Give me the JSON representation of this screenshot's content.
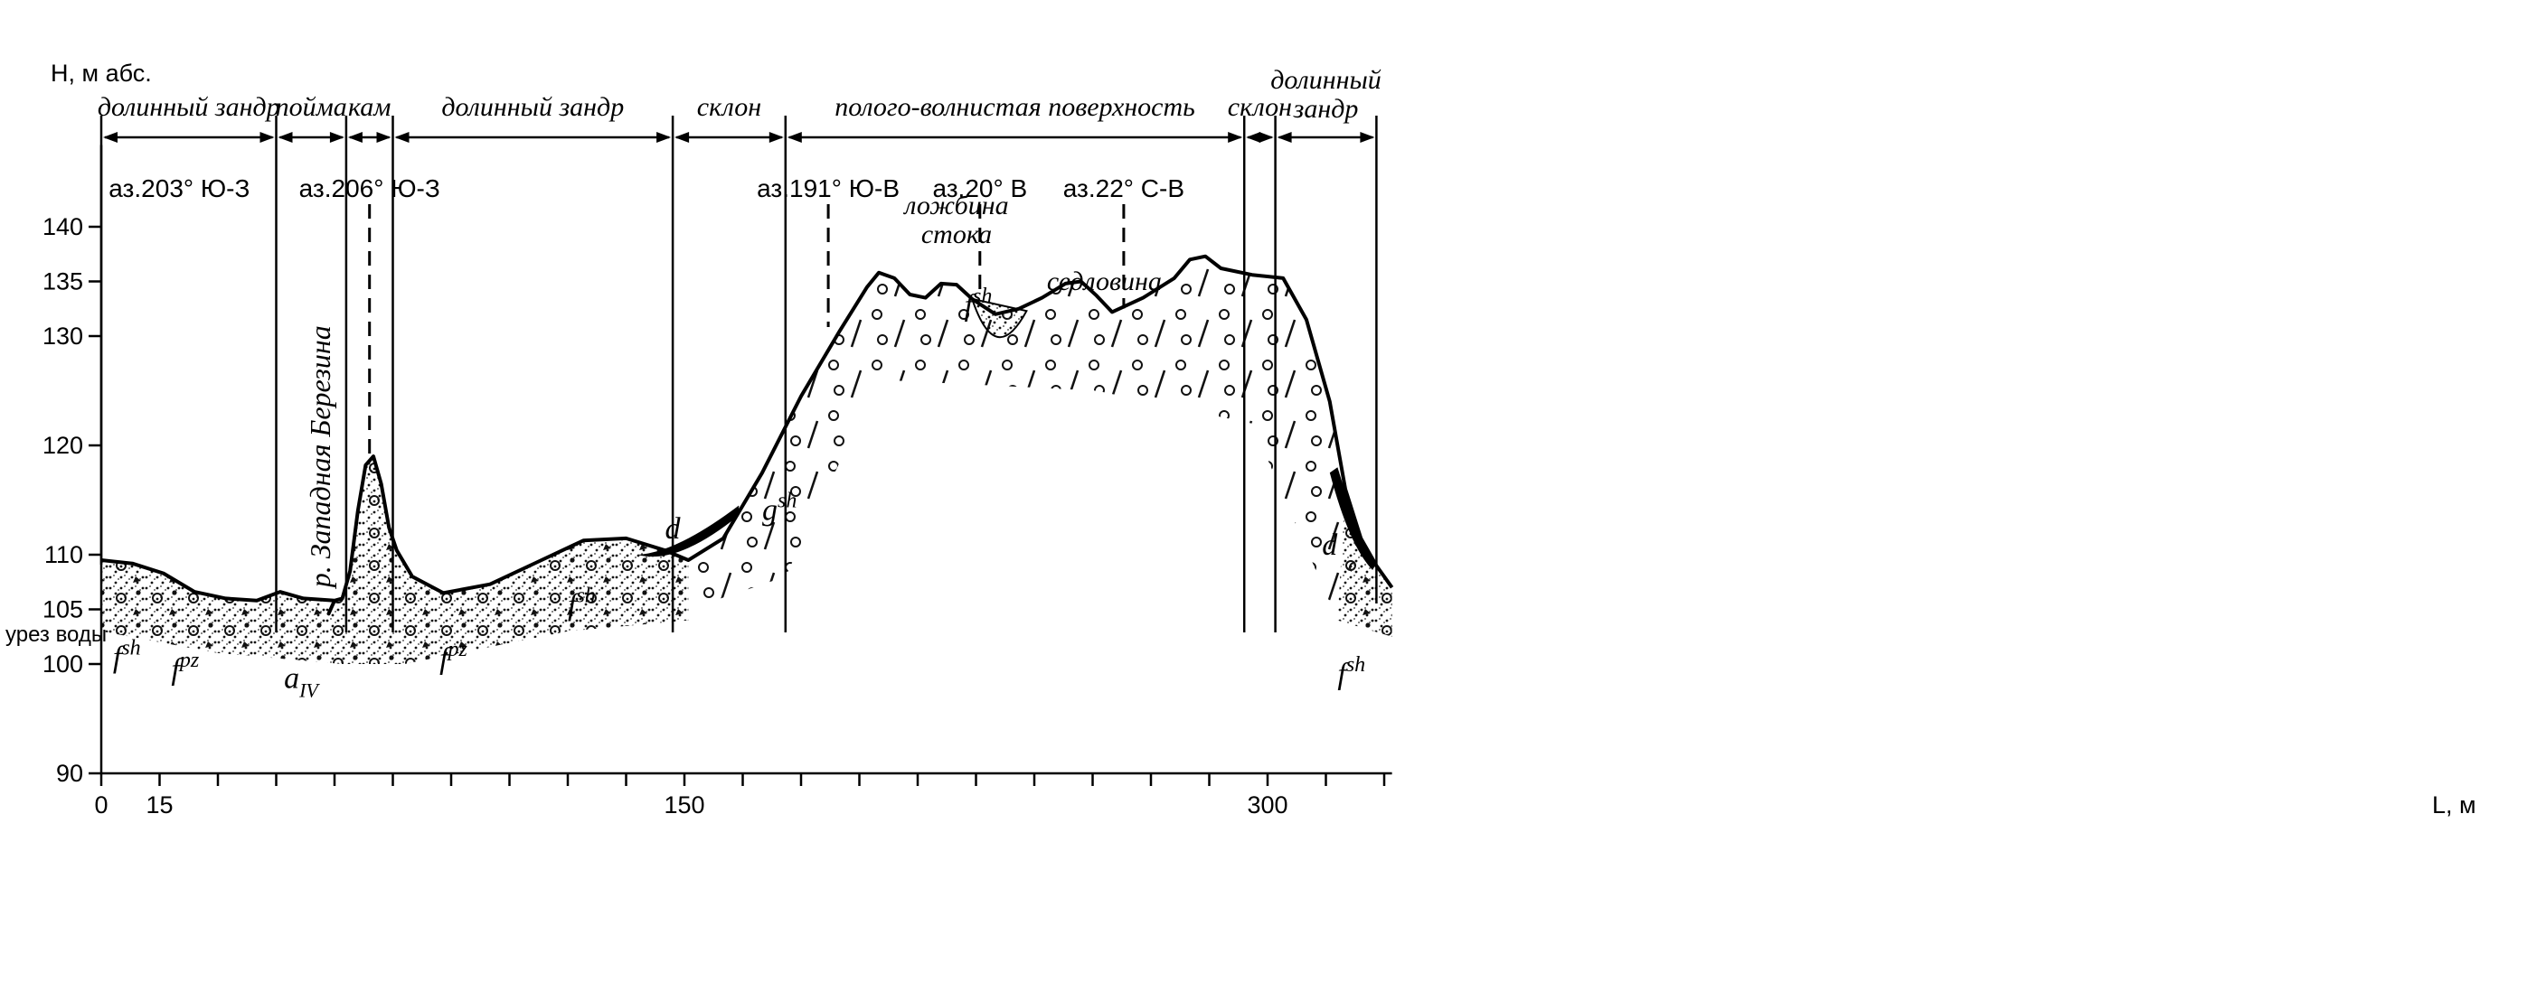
{
  "chart_data": {
    "type": "line",
    "ylabel": "H, м абс.",
    "xlabel": "L, м",
    "ylim": [
      90,
      145
    ],
    "xlim": [
      0,
      332
    ],
    "y_ticks": [
      90,
      100,
      105,
      110,
      120,
      130,
      135,
      140
    ],
    "x_ticks_labeled": [
      0,
      15,
      150,
      300
    ],
    "water_level_label": "урез воды",
    "profile": [
      [
        0,
        109.5
      ],
      [
        8,
        109.2
      ],
      [
        16,
        108.3
      ],
      [
        24,
        106.6
      ],
      [
        32,
        106.0
      ],
      [
        40,
        105.8
      ],
      [
        46,
        106.6
      ],
      [
        52,
        106.0
      ],
      [
        60,
        105.8
      ],
      [
        58.5,
        104.6
      ],
      [
        60,
        105.8
      ],
      [
        62,
        106.0
      ],
      [
        64,
        108.5
      ],
      [
        66,
        114.0
      ],
      [
        68,
        118.2
      ],
      [
        70,
        119.0
      ],
      [
        72,
        116.5
      ],
      [
        74,
        112.5
      ],
      [
        76,
        110.4
      ],
      [
        80,
        108.0
      ],
      [
        88,
        106.5
      ],
      [
        100,
        107.3
      ],
      [
        112,
        109.3
      ],
      [
        124,
        111.3
      ],
      [
        135,
        111.5
      ],
      [
        145,
        110.4
      ],
      [
        151,
        109.5
      ],
      [
        160,
        111.5
      ],
      [
        170,
        117.5
      ],
      [
        180,
        124.5
      ],
      [
        190,
        130.5
      ],
      [
        197,
        134.5
      ],
      [
        200,
        135.8
      ],
      [
        204,
        135.3
      ],
      [
        208,
        133.8
      ],
      [
        212,
        133.5
      ],
      [
        216,
        134.8
      ],
      [
        220,
        134.7
      ],
      [
        224,
        133.4
      ],
      [
        230,
        132.0
      ],
      [
        236,
        132.5
      ],
      [
        242,
        133.5
      ],
      [
        248,
        134.8
      ],
      [
        252,
        135.0
      ],
      [
        256,
        133.7
      ],
      [
        260,
        132.2
      ],
      [
        268,
        133.5
      ],
      [
        276,
        135.3
      ],
      [
        280,
        137.0
      ],
      [
        284,
        137.3
      ],
      [
        288,
        136.2
      ],
      [
        296,
        135.6
      ],
      [
        304,
        135.3
      ],
      [
        310,
        131.5
      ],
      [
        316,
        124.0
      ],
      [
        320,
        116.0
      ],
      [
        324,
        111.5
      ],
      [
        328,
        109.0
      ],
      [
        332,
        107.0
      ]
    ],
    "boundaries_m": [
      0,
      45,
      63,
      75,
      147,
      176,
      294,
      302,
      328
    ],
    "segments": [
      {
        "from": 0,
        "to": 45,
        "label": "долинный зандр"
      },
      {
        "from": 45,
        "to": 63,
        "label": "пойма"
      },
      {
        "from": 63,
        "to": 75,
        "label": "кам"
      },
      {
        "from": 75,
        "to": 147,
        "label": "долинный зандр"
      },
      {
        "from": 147,
        "to": 176,
        "label": "склон"
      },
      {
        "from": 176,
        "to": 294,
        "label": "полого-волнистая поверхность"
      },
      {
        "from": 294,
        "to": 302,
        "label": "склон"
      },
      {
        "from": 302,
        "to": 328,
        "label": "долинный\nзандр"
      }
    ],
    "azimuths": [
      {
        "at": 1,
        "label": "аз.203° Ю-З"
      },
      {
        "at": 69,
        "label": "аз.206° Ю-З"
      },
      {
        "at": 187,
        "label": "аз.191° Ю-В"
      },
      {
        "at": 226,
        "label": "аз.20° В"
      },
      {
        "at": 263,
        "label": "аз.22° С-В"
      }
    ],
    "river_label": "р. Западная Березина",
    "annotations": [
      "ложбина\nстока",
      "седловина"
    ],
    "deposits": [
      {
        "code": "f",
        "sup": "sh"
      },
      {
        "code": "f",
        "sup": "pz"
      },
      {
        "code": "a",
        "sub": "IV"
      },
      {
        "code": "f",
        "sup": "pz"
      },
      {
        "code": "f",
        "sup": "sh"
      },
      {
        "code": "d"
      },
      {
        "code": "g",
        "sup": "sh"
      },
      {
        "code": "f",
        "sup": "sh"
      },
      {
        "code": "d"
      },
      {
        "code": "f",
        "sup": "sh"
      }
    ]
  }
}
